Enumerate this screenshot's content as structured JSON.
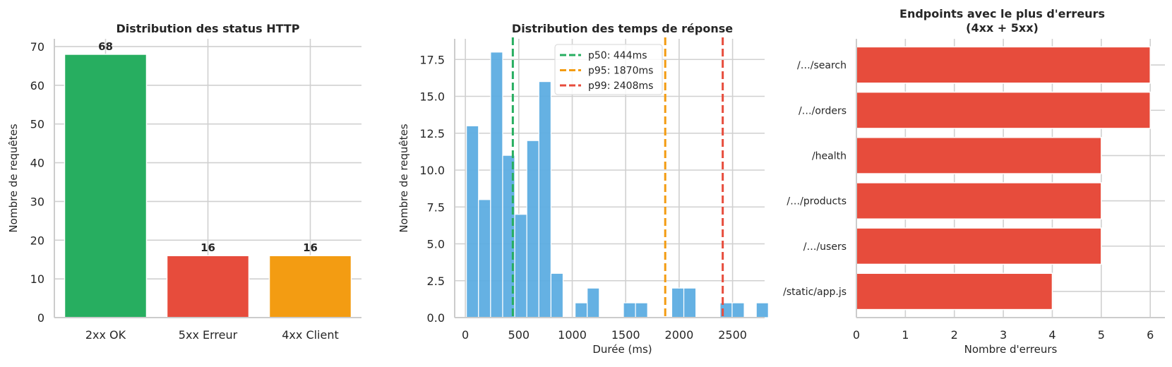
{
  "chart_data": [
    {
      "type": "bar",
      "title": "Distribution des status HTTP",
      "xlabel": "",
      "ylabel": "Nombre de requêtes",
      "categories": [
        "2xx OK",
        "5xx Erreur",
        "4xx Client"
      ],
      "values": [
        68,
        16,
        16
      ],
      "colors": [
        "#27ae60",
        "#e74c3c",
        "#f39c12"
      ],
      "data_labels": [
        "68",
        "16",
        "16"
      ],
      "ylim": [
        0,
        72
      ],
      "yticks": [
        0,
        10,
        20,
        30,
        40,
        50,
        60,
        70
      ],
      "grid": true
    },
    {
      "type": "bar",
      "subtype": "histogram",
      "title": "Distribution des temps de réponse",
      "xlabel": "Durée (ms)",
      "ylabel": "Nombre de requêtes",
      "bin_start": 10,
      "bin_width": 113,
      "counts": [
        13,
        8,
        18,
        11,
        7,
        12,
        16,
        3,
        0,
        1,
        2,
        0,
        0,
        1,
        1,
        0,
        0,
        2,
        2,
        0,
        0,
        1,
        1,
        0,
        1
      ],
      "bar_color": "#5dade2",
      "xlim": [
        -100,
        2800
      ],
      "ylim": [
        0,
        18.9
      ],
      "xticks": [
        0,
        500,
        1000,
        1500,
        2000,
        2500
      ],
      "yticks": [
        "0.0",
        "2.5",
        "5.0",
        "7.5",
        "10.0",
        "12.5",
        "15.0",
        "17.5"
      ],
      "vlines": [
        {
          "label": "p50: 444ms",
          "x": 444,
          "color": "#27ae60"
        },
        {
          "label": "p95: 1870ms",
          "x": 1870,
          "color": "#f39c12"
        },
        {
          "label": "p99: 2408ms",
          "x": 2408,
          "color": "#e74c3c"
        }
      ],
      "legend_position": "upper center",
      "grid": true
    },
    {
      "type": "bar",
      "subtype": "horizontal",
      "title": "Endpoints avec le plus d'erreurs\n(4xx + 5xx)",
      "title_lines": [
        "Endpoints avec le plus d'erreurs",
        "(4xx + 5xx)"
      ],
      "xlabel": "Nombre d'erreurs",
      "ylabel": "",
      "categories": [
        "/…/search",
        "/…/orders",
        "/health",
        "/…/products",
        "/…/users",
        "/static/app.js"
      ],
      "values": [
        6,
        6,
        5,
        5,
        5,
        4
      ],
      "bar_color": "#e74c3c",
      "xlim": [
        0,
        6.3
      ],
      "xticks": [
        0,
        1,
        2,
        3,
        4,
        5,
        6
      ],
      "grid": true
    }
  ]
}
